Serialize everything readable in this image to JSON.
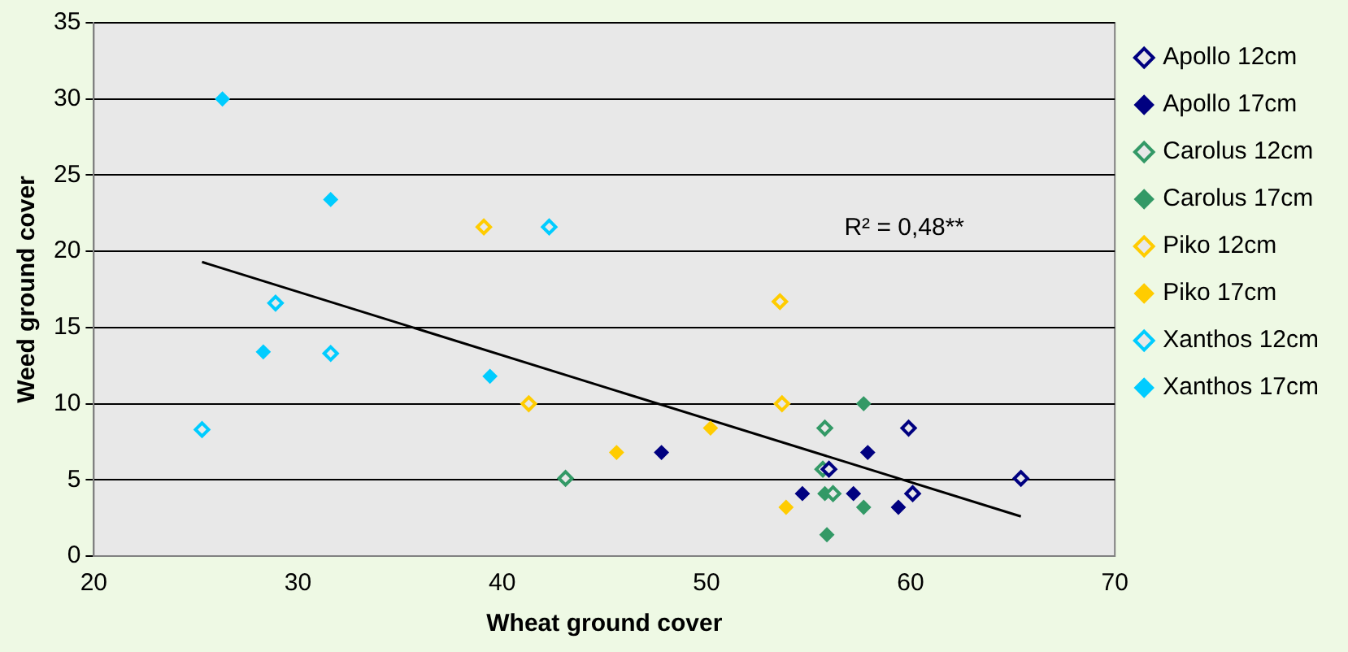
{
  "chart_data": {
    "type": "scatter",
    "xlabel": "Wheat ground cover",
    "ylabel": "Weed ground cover",
    "xlim": [
      20,
      70
    ],
    "xticks": [
      20,
      30,
      40,
      50,
      60,
      70
    ],
    "ylim": [
      0,
      35
    ],
    "yticks": [
      0,
      5,
      10,
      15,
      20,
      25,
      30,
      35
    ],
    "grid": "y",
    "legend": "right",
    "marker": "diamond",
    "annotations": [
      "R² = 0,48**"
    ],
    "series": [
      {
        "name": "Apollo 12cm",
        "color": "#000080",
        "x": [
          59.9,
          56.0,
          60.1,
          65.4
        ],
        "values": [
          8.4,
          5.7,
          4.1,
          5.1
        ]
      },
      {
        "name": "Apollo 17cm",
        "color": "#000080",
        "x": [
          47.8,
          57.9,
          54.7,
          57.2,
          59.4
        ],
        "values": [
          6.8,
          6.8,
          4.1,
          4.1,
          3.2
        ]
      },
      {
        "name": "Carolus 12cm",
        "color": "#339966",
        "x": [
          43.1,
          55.8,
          55.7,
          56.2
        ],
        "values": [
          5.1,
          8.4,
          5.7,
          4.1
        ]
      },
      {
        "name": "Carolus 17cm",
        "color": "#339966",
        "x": [
          57.7,
          55.8,
          57.7,
          55.9
        ],
        "values": [
          10.0,
          4.1,
          3.2,
          1.4
        ]
      },
      {
        "name": "Piko 12cm",
        "color": "#ffcc00",
        "x": [
          39.1,
          41.3,
          53.6,
          53.7
        ],
        "values": [
          21.6,
          10.0,
          16.7,
          10.0
        ]
      },
      {
        "name": "Piko 17cm",
        "color": "#ffcc00",
        "x": [
          45.6,
          50.2,
          53.9
        ],
        "values": [
          6.8,
          8.4,
          3.2
        ]
      },
      {
        "name": "Xanthos 12cm",
        "color": "#00ccff",
        "x": [
          25.3,
          28.9,
          31.6,
          42.3
        ],
        "values": [
          8.3,
          16.6,
          13.3,
          21.6
        ]
      },
      {
        "name": "Xanthos 17cm",
        "color": "#00ccff",
        "x": [
          26.3,
          31.6,
          28.3,
          39.4
        ],
        "values": [
          30.0,
          23.4,
          13.4,
          11.8
        ]
      },
      {
        "type": "line",
        "marker": "none",
        "color": "#000000",
        "x": [
          25.3,
          65.4
        ],
        "values": [
          19.3,
          2.6
        ]
      }
    ]
  }
}
